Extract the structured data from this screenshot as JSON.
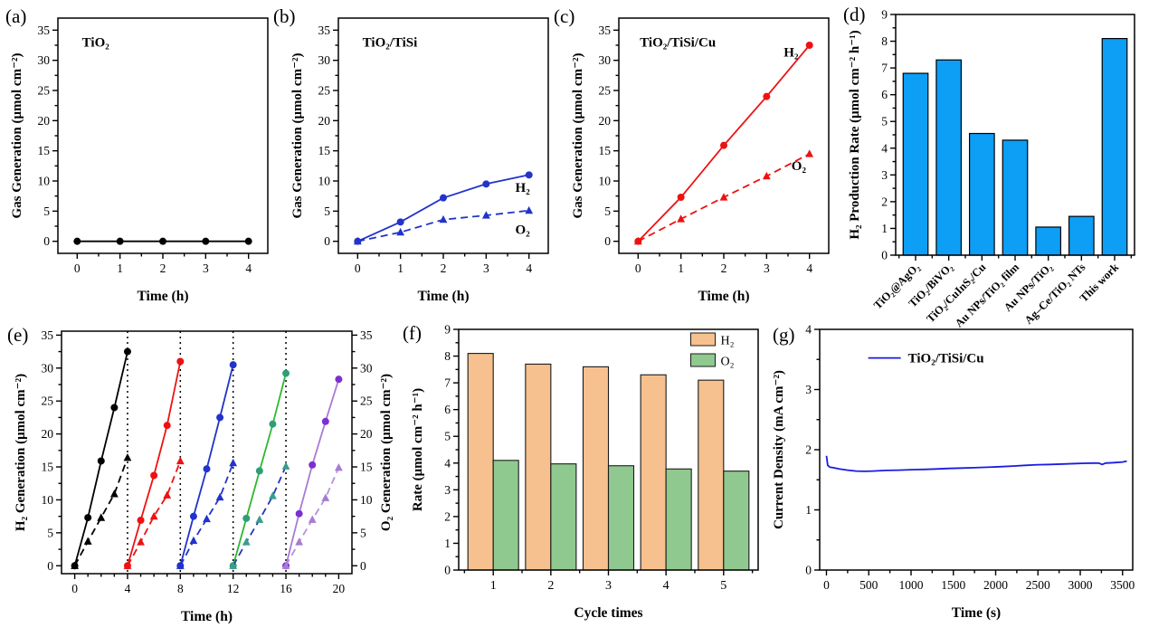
{
  "page": {
    "background": "#ffffff"
  },
  "chart_data": [
    {
      "id": "a",
      "letter": "(a)",
      "type": "line",
      "annotation": "TiO₂",
      "xlabel": "Time (h)",
      "ylabel": "Gas Generation (μmol cm⁻²)",
      "xlim": [
        -0.45,
        4.45
      ],
      "ylim": [
        -2,
        37
      ],
      "xticks": [
        0,
        1,
        2,
        3,
        4
      ],
      "xminor": 0.5,
      "yticks": [
        0,
        5,
        10,
        15,
        20,
        25,
        30,
        35
      ],
      "yminor": 2.5,
      "series": [
        {
          "name": "gas",
          "color": "#000000",
          "marker": "circle",
          "dash": false,
          "x": [
            0,
            1,
            2,
            3,
            4
          ],
          "y": [
            0,
            0,
            0,
            0,
            0
          ]
        }
      ]
    },
    {
      "id": "b",
      "letter": "(b)",
      "type": "line",
      "annotation": "TiO₂/TiSi",
      "xlabel": "Time (h)",
      "ylabel": "Gas Generation (μmol cm⁻²)",
      "xlim": [
        -0.45,
        4.45
      ],
      "ylim": [
        -2,
        37
      ],
      "xticks": [
        0,
        1,
        2,
        3,
        4
      ],
      "xminor": 0.5,
      "yticks": [
        0,
        5,
        10,
        15,
        20,
        25,
        30,
        35
      ],
      "yminor": 2.5,
      "series": [
        {
          "name": "H₂",
          "color": "#2233cc",
          "marker": "circle",
          "dash": false,
          "x": [
            0,
            1,
            2,
            3,
            4
          ],
          "y": [
            0,
            3.2,
            7.2,
            9.5,
            11
          ]
        },
        {
          "name": "O₂",
          "color": "#2233cc",
          "marker": "triangle",
          "dash": true,
          "x": [
            0,
            1,
            2,
            3,
            4
          ],
          "y": [
            0,
            1.5,
            3.6,
            4.3,
            5.1
          ]
        }
      ],
      "series_labels": [
        {
          "text": "H₂",
          "x": 3.68,
          "y": 8.2
        },
        {
          "text": "O₂",
          "x": 3.68,
          "y": 1.2
        }
      ]
    },
    {
      "id": "c",
      "letter": "(c)",
      "type": "line",
      "annotation": "TiO₂/TiSi/Cu",
      "xlabel": "Time (h)",
      "ylabel": "Gas Generation (μmol cm⁻²)",
      "xlim": [
        -0.45,
        4.45
      ],
      "ylim": [
        -2,
        37
      ],
      "xticks": [
        0,
        1,
        2,
        3,
        4
      ],
      "xminor": 0.5,
      "yticks": [
        0,
        5,
        10,
        15,
        20,
        25,
        30,
        35
      ],
      "yminor": 2.5,
      "series": [
        {
          "name": "H₂",
          "color": "#ee1111",
          "marker": "circle",
          "dash": false,
          "x": [
            0,
            1,
            2,
            3,
            4
          ],
          "y": [
            0,
            7.3,
            15.9,
            24,
            32.5
          ]
        },
        {
          "name": "O₂",
          "color": "#ee1111",
          "marker": "triangle",
          "dash": true,
          "x": [
            0,
            1,
            2,
            3,
            4
          ],
          "y": [
            0,
            3.7,
            7.3,
            10.8,
            14.5
          ]
        }
      ],
      "series_labels": [
        {
          "text": "H₂",
          "x": 3.4,
          "y": 30.6
        },
        {
          "text": "O₂",
          "x": 3.58,
          "y": 11.8
        }
      ]
    },
    {
      "id": "d",
      "letter": "(d)",
      "type": "bar",
      "ylabel": "H₂ Production Rate (μmol cm⁻² h⁻¹)",
      "categories": [
        "TiO₂@AgO₂",
        "TiO₂/BiVO₂",
        "TiO₂/CuInS₂/Cu",
        "Au NPs/TiO₂ film",
        "Au NPs/TiO₂",
        "Ag–Ce/TiO₂ NTs",
        "This work"
      ],
      "values": [
        6.8,
        7.3,
        4.55,
        4.3,
        1.05,
        1.45,
        8.1
      ],
      "fill": "#0d9ef5",
      "edge": "#000000",
      "ylim": [
        0,
        9
      ],
      "yticks": [
        0,
        1,
        2,
        3,
        4,
        5,
        6,
        7,
        8,
        9
      ],
      "yminor": 0.5
    },
    {
      "id": "e",
      "letter": "(e)",
      "type": "line",
      "xlabel": "Time (h)",
      "ylabel": "H₂ Generation (μmol cm⁻²)",
      "ylabel2": "O₂ Generation (μmol cm⁻²)",
      "xlim": [
        -1,
        21
      ],
      "ylim": [
        -1.2,
        35.6
      ],
      "xticks": [
        0,
        4,
        8,
        12,
        16,
        20
      ],
      "xminor": 1,
      "yticks": [
        0,
        5,
        10,
        15,
        20,
        25,
        30,
        35
      ],
      "yminor": 2.5,
      "vlines": [
        4,
        8,
        12,
        16
      ],
      "series": [
        {
          "name": "cycle1-H₂",
          "color": "#000000",
          "marker": "circle",
          "dash": false,
          "x": [
            0,
            1,
            2,
            3,
            4
          ],
          "y": [
            0,
            7.3,
            15.9,
            24,
            32.5
          ]
        },
        {
          "name": "cycle1-O₂",
          "color": "#000000",
          "marker": "triangle",
          "dash": true,
          "x": [
            0,
            1,
            2,
            3,
            4
          ],
          "y": [
            0,
            3.7,
            7.3,
            10.9,
            16.4
          ]
        },
        {
          "name": "cycle2-H₂",
          "color": "#ee1111",
          "marker": "circle",
          "dash": false,
          "x": [
            4,
            5,
            6,
            7,
            8
          ],
          "y": [
            0,
            6.9,
            13.7,
            21.3,
            31
          ]
        },
        {
          "name": "cycle2-O₂",
          "color": "#ee1111",
          "marker": "triangle",
          "dash": true,
          "x": [
            4,
            5,
            6,
            7,
            8
          ],
          "y": [
            0,
            3.6,
            7.5,
            10.7,
            15.9
          ]
        },
        {
          "name": "cycle3-H₂",
          "color": "#2233cc",
          "marker": "circle",
          "dash": false,
          "x": [
            8,
            9,
            10,
            11,
            12
          ],
          "y": [
            0,
            7.5,
            14.7,
            22.5,
            30.5
          ]
        },
        {
          "name": "cycle3-O₂",
          "color": "#2233cc",
          "marker": "triangle",
          "dash": true,
          "x": [
            8,
            9,
            10,
            11,
            12
          ],
          "y": [
            0,
            3.8,
            7.1,
            10.4,
            15.6
          ]
        },
        {
          "name": "cycle4-H₂",
          "color": "#2eb82e",
          "markerColor": "#2e9e78",
          "marker": "circle",
          "dash": false,
          "x": [
            12,
            13,
            14,
            15,
            16
          ],
          "y": [
            0,
            7.2,
            14.4,
            21.5,
            29.2
          ]
        },
        {
          "name": "cycle4-O₂",
          "color": "#2236bb",
          "markerColor": "#3a9d8d",
          "marker": "triangle",
          "dash": true,
          "x": [
            12,
            13,
            14,
            15,
            16
          ],
          "y": [
            0,
            3.6,
            7,
            10.6,
            15.1
          ]
        },
        {
          "name": "cycle5-H₂",
          "color": "#a77bd4",
          "markerColor": "#7d2fd0",
          "marker": "circle",
          "dash": false,
          "x": [
            16,
            17,
            18,
            19,
            20
          ],
          "y": [
            0,
            7.9,
            15.3,
            21.9,
            28.3
          ]
        },
        {
          "name": "cycle5-O₂",
          "color": "#b691dc",
          "markerColor": "#a77bd4",
          "marker": "triangle",
          "dash": true,
          "x": [
            16,
            17,
            18,
            19,
            20
          ],
          "y": [
            0,
            3.6,
            7,
            10.3,
            14.9
          ]
        }
      ]
    },
    {
      "id": "f",
      "letter": "(f)",
      "type": "bar-group",
      "xlabel": "Cycle times",
      "ylabel": "Rate (μmol cm⁻² h⁻¹)",
      "categories": [
        "1",
        "2",
        "3",
        "4",
        "5"
      ],
      "edge": "#1a1a1a",
      "ylim": [
        0,
        9
      ],
      "yticks": [
        0,
        1,
        2,
        3,
        4,
        5,
        6,
        7,
        8,
        9
      ],
      "yminor": 0.5,
      "series": [
        {
          "name": "H₂",
          "fill": "#F6C18F",
          "values": [
            8.1,
            7.7,
            7.6,
            7.3,
            7.1
          ]
        },
        {
          "name": "O₂",
          "fill": "#8FC98F",
          "values": [
            4.1,
            3.97,
            3.9,
            3.78,
            3.7
          ]
        }
      ],
      "legend": [
        {
          "label": "H₂",
          "color": "#F6C18F"
        },
        {
          "label": "O₂",
          "color": "#8FC98F"
        }
      ]
    },
    {
      "id": "g",
      "letter": "(g)",
      "type": "line",
      "xlabel": "Time (s)",
      "ylabel": "Current Density (mA cm⁻²)",
      "xlim": [
        -80,
        3620
      ],
      "ylim": [
        0,
        4
      ],
      "xticks": [
        0,
        500,
        1000,
        1500,
        2000,
        2500,
        3000,
        3500
      ],
      "xminor": 250,
      "yticks": [
        0,
        1,
        2,
        3,
        4
      ],
      "yminor": 0.5,
      "series": [
        {
          "name": "TiO₂/TiSi/Cu",
          "color": "#1b1be0",
          "marker": "none",
          "dash": false,
          "x": [
            0,
            15,
            40,
            80,
            150,
            250,
            350,
            450,
            550,
            700,
            850,
            1000,
            1150,
            1300,
            1450,
            1600,
            1750,
            1900,
            2050,
            2200,
            2350,
            2500,
            2650,
            2800,
            2950,
            3050,
            3150,
            3220,
            3260,
            3300,
            3400,
            3500,
            3550
          ],
          "y": [
            1.9,
            1.74,
            1.71,
            1.7,
            1.68,
            1.66,
            1.645,
            1.64,
            1.645,
            1.655,
            1.66,
            1.668,
            1.672,
            1.68,
            1.688,
            1.695,
            1.7,
            1.708,
            1.718,
            1.728,
            1.74,
            1.75,
            1.755,
            1.762,
            1.77,
            1.775,
            1.778,
            1.776,
            1.755,
            1.778,
            1.785,
            1.795,
            1.81
          ]
        }
      ],
      "legend": [
        {
          "label": "TiO₂/TiSi/Cu",
          "color": "#1b1be0",
          "line": true
        }
      ]
    }
  ]
}
